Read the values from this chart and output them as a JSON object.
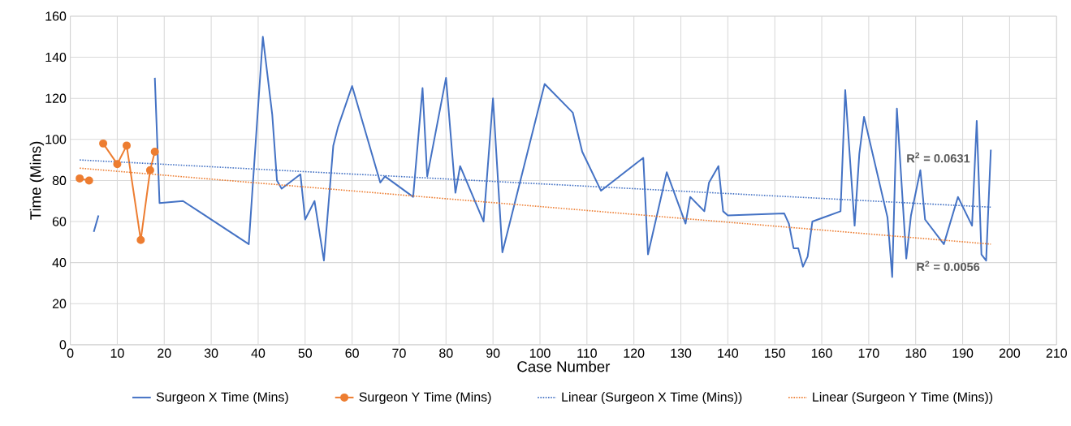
{
  "chart_data": {
    "type": "line",
    "xlabel": "Case Number",
    "ylabel": "Time (Mins)",
    "xlim": [
      0,
      210
    ],
    "ylim": [
      0,
      160
    ],
    "xticks": [
      0,
      10,
      20,
      30,
      40,
      50,
      60,
      70,
      80,
      90,
      100,
      110,
      120,
      130,
      140,
      150,
      160,
      170,
      180,
      190,
      200,
      210
    ],
    "yticks": [
      0,
      20,
      40,
      60,
      80,
      100,
      120,
      140,
      160
    ],
    "grid": true,
    "legend": "bottom",
    "series": [
      {
        "name": "Surgeon X Time (Mins)",
        "color": "#4472c4",
        "marker": "none",
        "line_style": "solid",
        "x": [
          5,
          6,
          7,
          18,
          19,
          24,
          38,
          41,
          43,
          44,
          45,
          49,
          50,
          52,
          54,
          56,
          57,
          60,
          66,
          67,
          73,
          75,
          76,
          80,
          82,
          83,
          88,
          90,
          92,
          101,
          107,
          109,
          113,
          122,
          123,
          127,
          131,
          132,
          135,
          136,
          138,
          139,
          140,
          152,
          153,
          154,
          155,
          156,
          157,
          158,
          164,
          165,
          167,
          168,
          169,
          174,
          175,
          176,
          178,
          179,
          181,
          182,
          186,
          189,
          192,
          193,
          194,
          195,
          196
        ],
        "values": [
          55,
          63,
          null,
          130,
          69,
          70,
          49,
          150,
          112,
          80,
          76,
          83,
          61,
          70,
          41,
          97,
          106,
          126,
          79,
          82,
          72,
          125,
          82,
          130,
          74,
          87,
          60,
          120,
          45,
          127,
          113,
          94,
          75,
          91,
          44,
          84,
          59,
          72,
          65,
          79,
          87,
          65,
          63,
          64,
          59,
          47,
          47,
          38,
          43,
          60,
          65,
          124,
          58,
          93,
          111,
          62,
          33,
          115,
          42,
          63,
          85,
          61,
          49,
          72,
          58,
          109,
          44,
          41,
          95
        ]
      },
      {
        "name": "Surgeon Y Time (Mins)",
        "color": "#ed7d31",
        "marker": "circle",
        "line_style": "solid",
        "x": [
          2,
          4,
          5,
          7,
          10,
          12,
          15,
          17,
          18
        ],
        "values": [
          81,
          80,
          null,
          98,
          88,
          97,
          51,
          85,
          94
        ]
      },
      {
        "name": "Linear (Surgeon X Time (Mins))",
        "color": "#4472c4",
        "marker": "none",
        "line_style": "dotted",
        "x": [
          2,
          196
        ],
        "values": [
          90,
          67
        ]
      },
      {
        "name": "Linear (Surgeon Y Time (Mins))",
        "color": "#ed7d31",
        "marker": "none",
        "line_style": "dotted",
        "x": [
          2,
          196
        ],
        "values": [
          86,
          49
        ]
      }
    ],
    "annotations": [
      "R$^{2}$ = 0.0631",
      "R$^{2}$ = 0.0056"
    ]
  }
}
